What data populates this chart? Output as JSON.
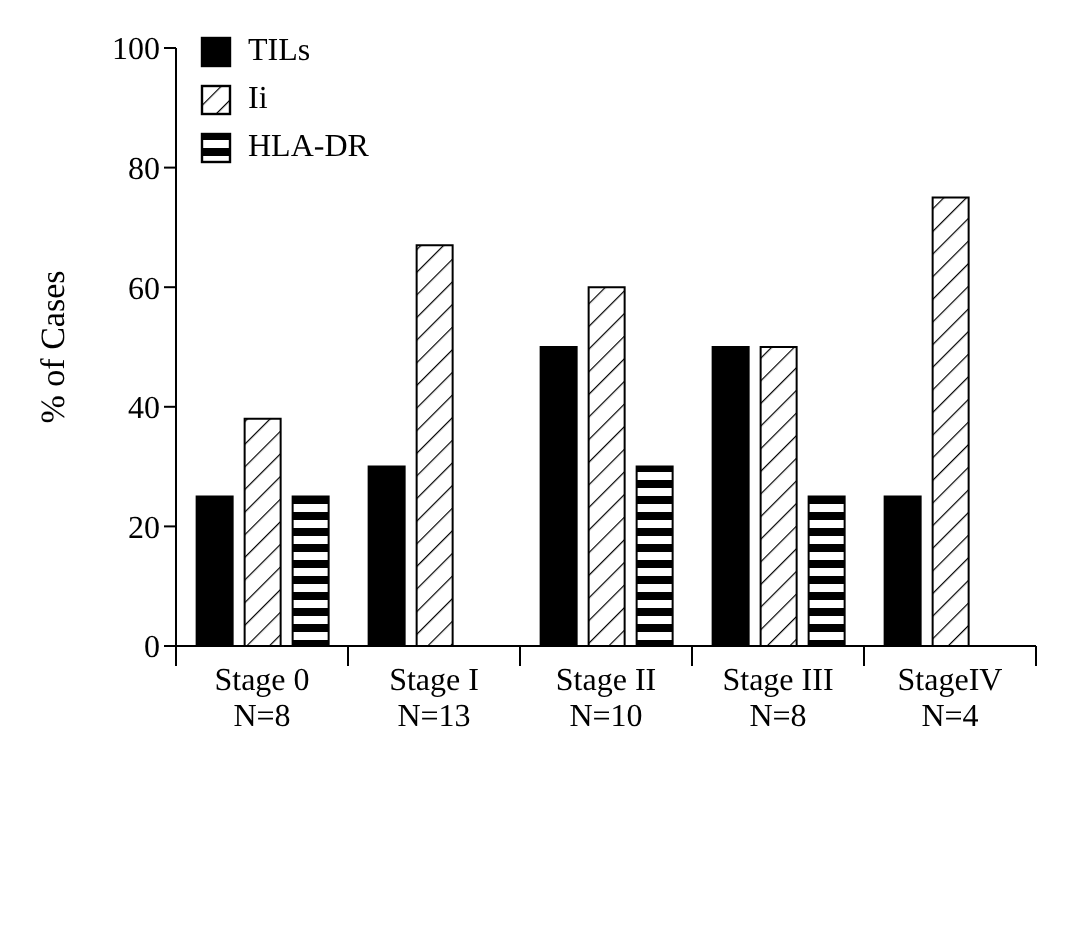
{
  "chart_data": {
    "type": "bar",
    "ylabel": "% of Cases",
    "categories": [
      "Stage 0\nN=8",
      "Stage I\nN=13",
      "Stage II\nN=10",
      "Stage III\nN=8",
      "StageIV\nN=4"
    ],
    "series": [
      {
        "name": "TILs",
        "color": "#000000",
        "values": [
          25,
          30,
          50,
          50,
          25
        ]
      },
      {
        "name": "Ii",
        "color": "#000000",
        "values": [
          38,
          67,
          60,
          50,
          75
        ]
      },
      {
        "name": "HLA-DR",
        "color": "#000000",
        "values": [
          25,
          null,
          30,
          25,
          null
        ]
      }
    ],
    "ylim": [
      0,
      100
    ],
    "yticks": [
      0,
      20,
      40,
      60,
      80,
      100
    ],
    "grid": false,
    "legend": "top left"
  }
}
